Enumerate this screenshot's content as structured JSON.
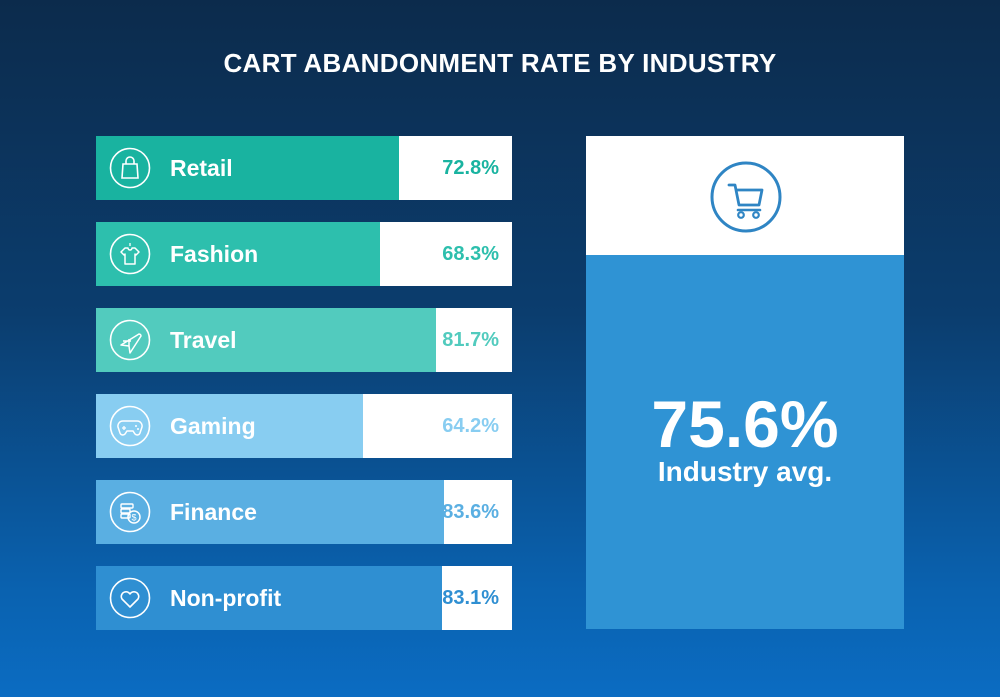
{
  "chart_data": {
    "type": "bar",
    "orientation": "horizontal",
    "title": "CART ABANDONMENT RATE BY INDUSTRY",
    "categories": [
      "Retail",
      "Fashion",
      "Travel",
      "Gaming",
      "Finance",
      "Non-profit"
    ],
    "values": [
      72.8,
      68.3,
      81.7,
      64.2,
      83.6,
      83.1
    ],
    "value_labels": [
      "72.8%",
      "68.3%",
      "81.7%",
      "64.2%",
      "83.6%",
      "83.1%"
    ],
    "icons": [
      "shopping-bag-icon",
      "shirt-icon",
      "airplane-icon",
      "gamepad-icon",
      "coins-icon",
      "heart-icon"
    ],
    "colors": [
      "#19b3a0",
      "#2dbfad",
      "#52cbbe",
      "#88cdf1",
      "#5aafe2",
      "#2f8fd2"
    ],
    "xlim": [
      0,
      100
    ],
    "grid": false,
    "summary": {
      "value": "75.6%",
      "label": "Industry avg.",
      "icon": "shopping-cart-icon",
      "color": "#2f93d4"
    }
  }
}
